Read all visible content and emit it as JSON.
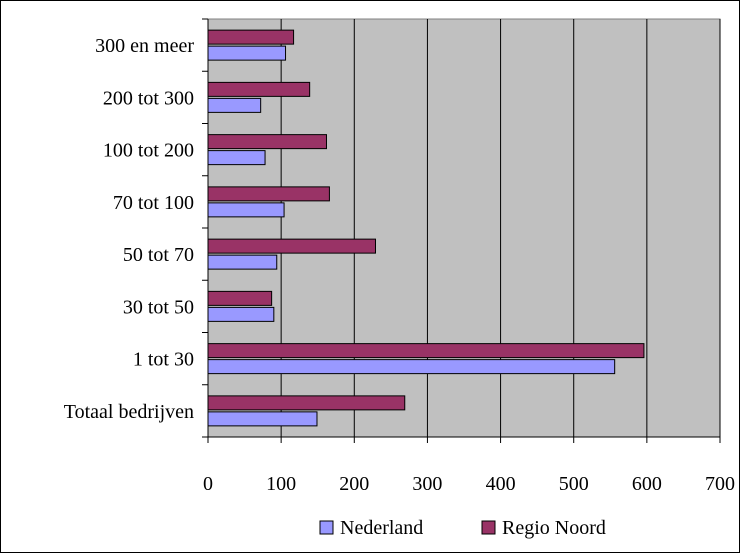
{
  "chart_data": {
    "type": "bar",
    "orientation": "horizontal",
    "categories": [
      "Totaal bedrijven",
      "1 tot 30",
      "30 tot 50",
      "50 tot 70",
      "70 tot 100",
      "100 tot 200",
      "200 tot 300",
      "300 en meer"
    ],
    "series": [
      {
        "name": "Nederland",
        "values": [
          149,
          556,
          90,
          94,
          104,
          78,
          72,
          106
        ],
        "color": "#9999ff"
      },
      {
        "name": "Regio Noord",
        "values": [
          269,
          596,
          87,
          229,
          166,
          162,
          139,
          117
        ],
        "color": "#993366"
      }
    ],
    "xlim": [
      0,
      700
    ],
    "x_ticks": [
      "0",
      "100",
      "200",
      "300",
      "400",
      "500",
      "600",
      "700"
    ],
    "grid": "vertical",
    "plot_background": "#c0c0c0",
    "legend_position": "bottom"
  }
}
